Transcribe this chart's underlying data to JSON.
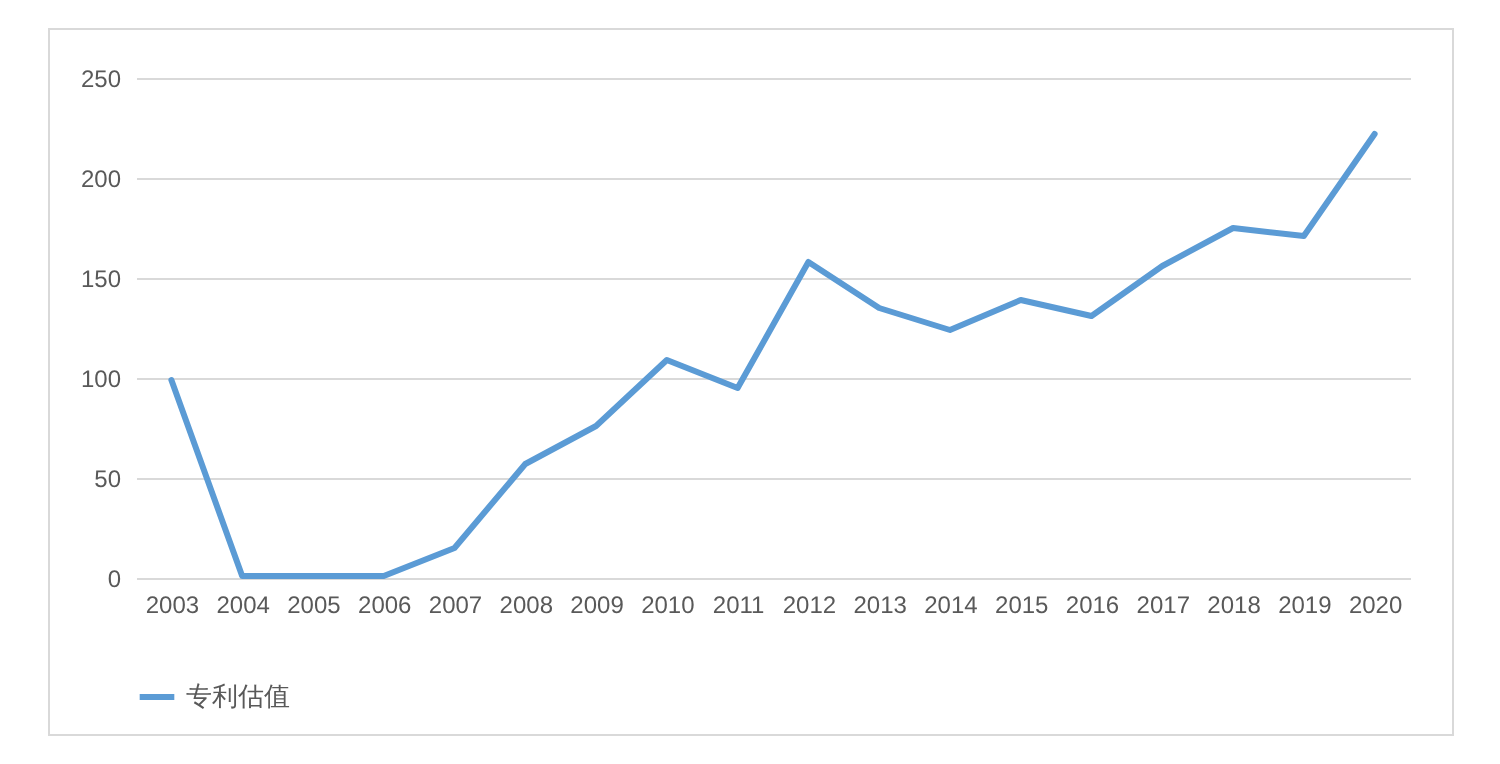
{
  "chart_data": {
    "type": "line",
    "categories": [
      "2003",
      "2004",
      "2005",
      "2006",
      "2007",
      "2008",
      "2009",
      "2010",
      "2011",
      "2012",
      "2013",
      "2014",
      "2015",
      "2016",
      "2017",
      "2018",
      "2019",
      "2020"
    ],
    "series": [
      {
        "name": "专利估值",
        "color": "#5b9bd5",
        "values": [
          99,
          1,
          1,
          1,
          15,
          57,
          76,
          109,
          95,
          158,
          135,
          124,
          139,
          131,
          156,
          175,
          171,
          222
        ]
      }
    ],
    "ylim": [
      0,
      250
    ],
    "yticks": [
      0,
      50,
      100,
      150,
      200,
      250
    ],
    "grid": "y",
    "legend": "bottom",
    "marker": "none",
    "line_style": "solid"
  }
}
